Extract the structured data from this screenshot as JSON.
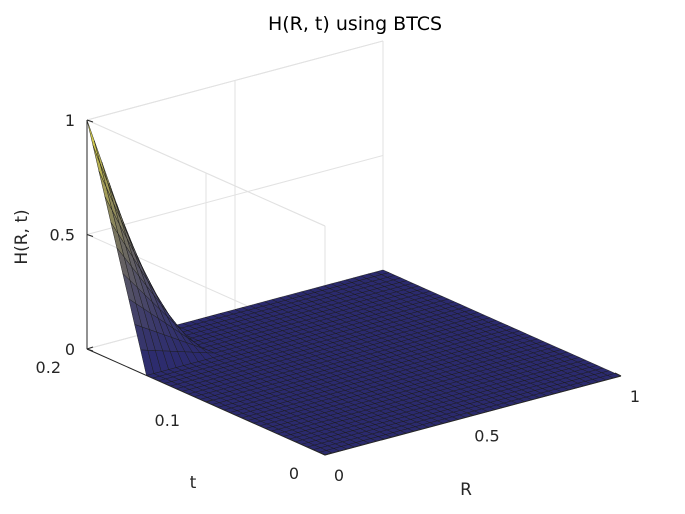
{
  "chart_data": {
    "type": "surface",
    "title": "H(R, t) using BTCS",
    "xlabel": "R",
    "ylabel": "t",
    "zlabel": "H(R, t)",
    "xlim": [
      0,
      1
    ],
    "ylim": [
      0,
      0.2
    ],
    "zlim": [
      0,
      1
    ],
    "xticks": [
      {
        "value": 0,
        "label": "0"
      },
      {
        "value": 0.5,
        "label": "0.5"
      },
      {
        "value": 1,
        "label": "1"
      }
    ],
    "yticks": [
      {
        "value": 0,
        "label": "0"
      },
      {
        "value": 0.1,
        "label": "0.1"
      },
      {
        "value": 0.2,
        "label": "0.2"
      }
    ],
    "zticks": [
      {
        "value": 0,
        "label": "0"
      },
      {
        "value": 0.5,
        "label": "0.5"
      },
      {
        "value": 1,
        "label": "1"
      }
    ],
    "grid": true,
    "colormap": "parula",
    "surface": {
      "R": [
        0,
        0.25,
        0.5,
        0.75,
        1
      ],
      "t": [
        0,
        0.05,
        0.1,
        0.15,
        0.2
      ],
      "H": [
        [
          0,
          0,
          0,
          0,
          0
        ],
        [
          0,
          0,
          0,
          0,
          0
        ],
        [
          0,
          0,
          0,
          0,
          0
        ],
        [
          0,
          0,
          0,
          0,
          0
        ],
        [
          1,
          0,
          0,
          0,
          0
        ]
      ],
      "description_note": ""
    },
    "colors": {
      "surface_low": "#2b2a6e",
      "surface_high": "#e8e04a",
      "edge": "#1a1a1a",
      "grid": "#e2e2e2",
      "axis": "#262626"
    }
  }
}
